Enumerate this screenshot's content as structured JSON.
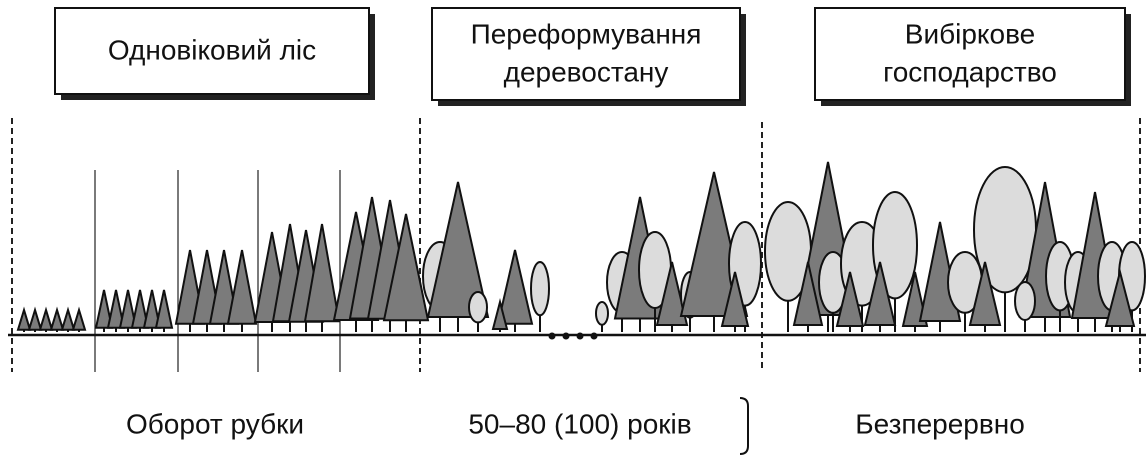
{
  "boxes": [
    {
      "lines": [
        "Одновіковий ліс"
      ]
    },
    {
      "lines": [
        "Переформування",
        "деревостану"
      ]
    },
    {
      "lines": [
        "Вибіркове",
        "господарство"
      ]
    }
  ],
  "bottom_labels": [
    "Оборот рубки",
    "50–80 (100) років",
    "Безперервно"
  ]
}
